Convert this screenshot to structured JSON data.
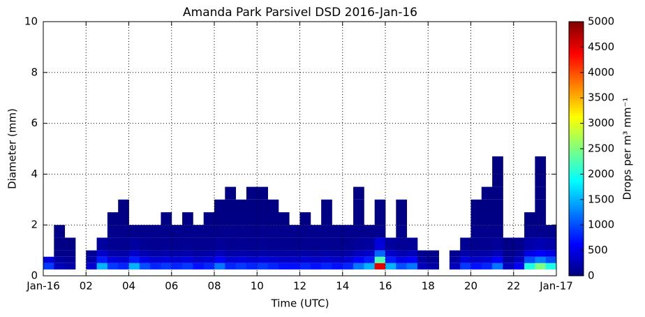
{
  "chart_data": {
    "type": "heatmap",
    "title": "Amanda Park Parsivel DSD 2016-Jan-16",
    "xlabel": "Time (UTC)",
    "ylabel": "Diameter (mm)",
    "xbins": [
      0,
      0.5,
      1,
      1.5,
      2,
      2.5,
      3,
      3.5,
      4,
      4.5,
      5,
      5.5,
      6,
      6.5,
      7,
      7.5,
      8,
      8.5,
      9,
      9.5,
      10,
      10.5,
      11,
      11.5,
      12,
      12.5,
      13,
      13.5,
      14,
      14.5,
      15,
      15.5,
      16,
      16.5,
      17,
      17.5,
      18,
      18.5,
      19,
      19.5,
      20,
      20.5,
      21,
      21.5,
      22,
      22.5,
      23,
      23.5,
      24
    ],
    "ybins": [
      0.25,
      0.5,
      0.75,
      1,
      1.5,
      2,
      2.5,
      3,
      3.5,
      4,
      4.7
    ],
    "values": [
      [
        900,
        300,
        200,
        null,
        400,
        1500,
        900,
        800,
        1500,
        1000,
        800,
        900,
        800,
        900,
        700,
        800,
        1200,
        800,
        900,
        800,
        900,
        800,
        700,
        700,
        800,
        700,
        800,
        700,
        800,
        1200,
        1500,
        4500,
        1500,
        1000,
        1200,
        300,
        200,
        null,
        300,
        900,
        700,
        800,
        1200,
        300,
        600,
        2000,
        2500,
        2000
      ],
      [
        450,
        150,
        100,
        null,
        200,
        750,
        450,
        400,
        750,
        500,
        400,
        450,
        400,
        450,
        350,
        400,
        600,
        400,
        450,
        400,
        450,
        400,
        350,
        350,
        400,
        350,
        400,
        350,
        400,
        600,
        750,
        2250,
        750,
        500,
        600,
        150,
        100,
        null,
        150,
        450,
        350,
        400,
        600,
        150,
        300,
        1000,
        1250,
        1000
      ],
      [
        null,
        75,
        50,
        null,
        100,
        375,
        225,
        200,
        375,
        250,
        200,
        225,
        200,
        225,
        175,
        200,
        300,
        200,
        225,
        200,
        225,
        200,
        175,
        175,
        200,
        175,
        200,
        175,
        200,
        300,
        375,
        1125,
        375,
        250,
        300,
        75,
        50,
        null,
        75,
        225,
        175,
        200,
        300,
        75,
        150,
        500,
        625,
        500
      ],
      [
        null,
        30,
        20,
        null,
        null,
        150,
        90,
        80,
        150,
        100,
        80,
        90,
        80,
        90,
        70,
        80,
        120,
        80,
        90,
        80,
        90,
        80,
        70,
        70,
        80,
        70,
        80,
        70,
        80,
        120,
        150,
        450,
        150,
        100,
        120,
        null,
        null,
        null,
        null,
        90,
        70,
        80,
        120,
        30,
        60,
        200,
        250,
        200
      ],
      [
        null,
        40,
        null,
        null,
        null,
        null,
        60,
        60,
        60,
        60,
        60,
        60,
        60,
        60,
        60,
        60,
        60,
        60,
        60,
        60,
        60,
        60,
        60,
        60,
        60,
        60,
        60,
        60,
        60,
        60,
        60,
        60,
        null,
        60,
        null,
        null,
        null,
        null,
        null,
        null,
        60,
        60,
        60,
        null,
        null,
        60,
        60,
        60
      ],
      [
        null,
        null,
        null,
        null,
        null,
        null,
        25,
        25,
        null,
        null,
        null,
        25,
        null,
        25,
        null,
        25,
        25,
        25,
        25,
        25,
        25,
        25,
        25,
        null,
        25,
        null,
        25,
        null,
        null,
        25,
        null,
        25,
        null,
        25,
        null,
        null,
        null,
        null,
        null,
        null,
        25,
        25,
        25,
        null,
        null,
        25,
        25,
        null
      ],
      [
        null,
        null,
        null,
        null,
        null,
        null,
        null,
        15,
        null,
        null,
        null,
        null,
        null,
        null,
        null,
        null,
        15,
        15,
        15,
        15,
        15,
        15,
        null,
        null,
        null,
        null,
        15,
        null,
        null,
        15,
        null,
        15,
        null,
        15,
        null,
        null,
        null,
        null,
        null,
        null,
        15,
        15,
        15,
        null,
        null,
        null,
        15,
        null
      ],
      [
        null,
        null,
        null,
        null,
        null,
        null,
        null,
        null,
        null,
        null,
        null,
        null,
        null,
        null,
        null,
        null,
        null,
        10,
        null,
        10,
        10,
        null,
        null,
        null,
        null,
        null,
        null,
        null,
        null,
        10,
        null,
        null,
        null,
        null,
        null,
        null,
        null,
        null,
        null,
        null,
        null,
        10,
        10,
        null,
        null,
        null,
        10,
        null
      ],
      [
        null,
        null,
        null,
        null,
        null,
        null,
        null,
        null,
        null,
        null,
        null,
        null,
        null,
        null,
        null,
        null,
        null,
        null,
        null,
        null,
        null,
        null,
        null,
        null,
        null,
        null,
        null,
        null,
        null,
        null,
        null,
        null,
        null,
        null,
        null,
        null,
        null,
        null,
        null,
        null,
        null,
        null,
        8,
        null,
        null,
        null,
        8,
        null
      ],
      [
        null,
        null,
        null,
        null,
        null,
        null,
        null,
        null,
        null,
        null,
        null,
        null,
        null,
        null,
        null,
        null,
        null,
        null,
        null,
        null,
        null,
        null,
        null,
        null,
        null,
        null,
        null,
        null,
        null,
        null,
        null,
        null,
        null,
        null,
        null,
        null,
        null,
        null,
        null,
        null,
        null,
        null,
        5,
        null,
        null,
        null,
        5,
        null
      ]
    ],
    "xlim": [
      0,
      24
    ],
    "xticks": [
      {
        "value": 0,
        "label": "Jan-16"
      },
      {
        "value": 2,
        "label": "02"
      },
      {
        "value": 4,
        "label": "04"
      },
      {
        "value": 6,
        "label": "06"
      },
      {
        "value": 8,
        "label": "08"
      },
      {
        "value": 10,
        "label": "10"
      },
      {
        "value": 12,
        "label": "12"
      },
      {
        "value": 14,
        "label": "14"
      },
      {
        "value": 16,
        "label": "16"
      },
      {
        "value": 18,
        "label": "18"
      },
      {
        "value": 20,
        "label": "20"
      },
      {
        "value": 22,
        "label": "22"
      },
      {
        "value": 24,
        "label": "Jan-17"
      }
    ],
    "ylim": [
      0,
      10
    ],
    "yticks": [
      0,
      2,
      4,
      6,
      8,
      10
    ],
    "grid": true,
    "colormap": "jet",
    "clim": [
      0,
      5000
    ],
    "cticks": [
      0,
      500,
      1000,
      1500,
      2000,
      2500,
      3000,
      3500,
      4000,
      4500,
      5000
    ],
    "clabel": "Drops per m³ mm⁻¹"
  }
}
